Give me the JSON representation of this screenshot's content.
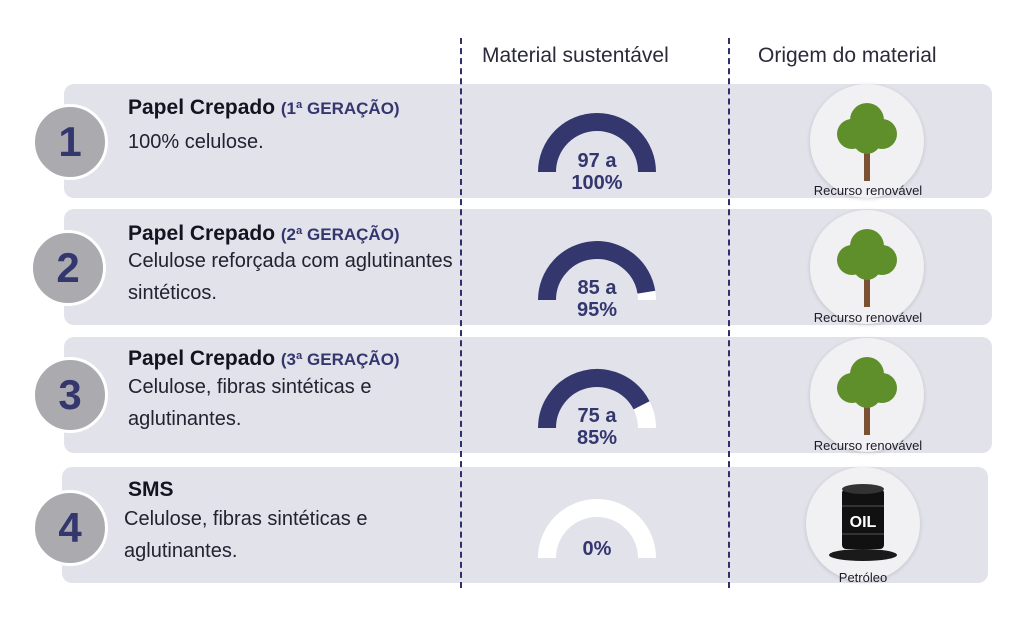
{
  "header": {
    "material_col": "Material sustentável",
    "origin_col": "Origem do material"
  },
  "rows": [
    {
      "number": "1",
      "name": "Papel Crepado",
      "generation": "(1ª GERAÇÃO)",
      "description": "100% celulose.",
      "percent_min": 97,
      "percent_max": 100,
      "percent_label_line1": "97 a",
      "percent_label_line2": "100%",
      "origin_icon": "tree-icon",
      "origin_label": "Recurso renovável"
    },
    {
      "number": "2",
      "name": "Papel Crepado",
      "generation": "(2ª GERAÇÃO)",
      "description": "Celulose reforçada com aglutinantes sintéticos.",
      "percent_min": 85,
      "percent_max": 95,
      "percent_label_line1": "85 a",
      "percent_label_line2": "95%",
      "origin_icon": "tree-icon",
      "origin_label": "Recurso renovável"
    },
    {
      "number": "3",
      "name": "Papel Crepado",
      "generation": "(3ª GERAÇÃO)",
      "description": "Celulose, fibras sintéticas e aglutinantes.",
      "percent_min": 75,
      "percent_max": 85,
      "percent_label_line1": "75 a",
      "percent_label_line2": "85%",
      "origin_icon": "tree-icon",
      "origin_label": "Recurso renovável"
    },
    {
      "number": "4",
      "name": "SMS",
      "generation": "",
      "description": "Celulose, fibras sintéticas e aglutinantes.",
      "percent_min": 0,
      "percent_max": 0,
      "percent_label_line1": "",
      "percent_label_line2": "0%",
      "origin_icon": "oil-barrel-icon",
      "origin_icon_text": "OIL",
      "origin_label": "Petróleo"
    }
  ],
  "colors": {
    "accent": "#34366e",
    "panel": "#e2e2eb",
    "tree": "#5f8f2a",
    "trunk": "#7a5233"
  }
}
